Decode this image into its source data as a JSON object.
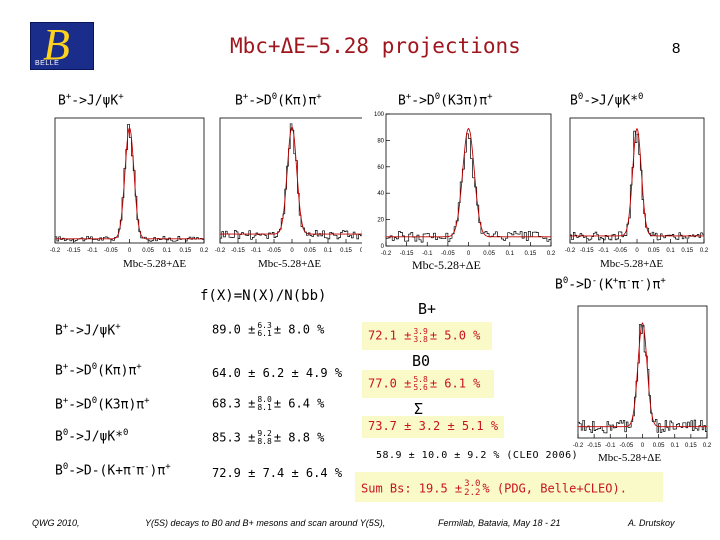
{
  "header": {
    "logo_text": "BELLE",
    "title": "Mbc+ΔE−5.28  projections",
    "page_number": "8"
  },
  "chart_data": [
    {
      "type": "histogram",
      "channel": "B+->J/ψK+",
      "xlabel": "Mbc-5.28+ΔE",
      "xlim": [
        -0.2,
        0.2
      ],
      "x_ticks": [
        -0.2,
        -0.15,
        -0.1,
        -0.05,
        0,
        0.05,
        0.1,
        0.15,
        0.2
      ],
      "ylim": [
        0,
        90
      ],
      "y_ticks": [],
      "peak_mean": 0.0,
      "peak_width": 0.012,
      "signal_height": 80,
      "background_level": 3
    },
    {
      "type": "histogram",
      "channel": "B+->D0(Kπ)π+",
      "xlabel": "Mbc-5.28+ΔE",
      "xlim": [
        -0.2,
        0.2
      ],
      "x_ticks": [
        -0.2,
        -0.15,
        -0.1,
        -0.05,
        0,
        0.05,
        0.1,
        0.15,
        0.2
      ],
      "ylim": [
        0,
        70
      ],
      "y_ticks": [],
      "peak_mean": 0.0,
      "peak_width": 0.013,
      "signal_height": 60,
      "background_level": 5
    },
    {
      "type": "histogram",
      "channel": "B+->D0(K3π)π+",
      "xlabel": "Mbc-5.28+ΔE",
      "xlim": [
        -0.2,
        0.2
      ],
      "x_ticks": [
        -0.2,
        -0.15,
        -0.1,
        -0.05,
        0,
        0.05,
        0.1,
        0.15,
        0.2
      ],
      "ylim": [
        0,
        100
      ],
      "y_ticks": [
        0,
        20,
        40,
        60,
        80,
        100
      ],
      "peak_mean": 0.0,
      "peak_width": 0.014,
      "signal_height": 82,
      "background_level": 7
    },
    {
      "type": "histogram",
      "channel": "B0->J/ψK*0",
      "xlabel": "Mbc-5.28+ΔE",
      "xlim": [
        -0.2,
        0.2
      ],
      "x_ticks": [
        -0.2,
        -0.15,
        -0.1,
        -0.05,
        0,
        0.05,
        0.1,
        0.15,
        0.2
      ],
      "ylim": [
        0,
        70
      ],
      "y_ticks": [],
      "peak_mean": 0.0,
      "peak_width": 0.013,
      "signal_height": 60,
      "background_level": 4
    },
    {
      "type": "histogram",
      "channel": "B0->D-(K+π−π−)π+",
      "xlabel": "Mbc-5.28+ΔE",
      "xlim": [
        -0.2,
        0.2
      ],
      "x_ticks": [
        -0.2,
        -0.15,
        -0.1,
        -0.05,
        0,
        0.05,
        0.1,
        0.15,
        0.2
      ],
      "ylim": [
        0,
        70
      ],
      "y_ticks": [],
      "peak_mean": 0.0,
      "peak_width": 0.014,
      "signal_height": 55,
      "background_level": 6
    }
  ],
  "channel_headers": {
    "h1": {
      "pre": "B",
      "sup1": "+",
      "mid": "->J/ψK",
      "sup2": "+"
    },
    "h2": {
      "pre": "B",
      "sup1": "+",
      "mid": "->D",
      "sup2": "0",
      "post": "(Kπ)π",
      "sup3": "+"
    },
    "h3": {
      "pre": "B",
      "sup1": "+",
      "mid": "->D",
      "sup2": "0",
      "post": "(K3π)π",
      "sup3": "+"
    },
    "h4": {
      "pre": "B",
      "sup1": "0",
      "mid": "->J/ψK*",
      "sup2": "0"
    },
    "h5": {
      "pre": "B",
      "sup1": "0",
      "mid": "->D",
      "sup2": "-",
      "post": "(K",
      "sup3": "+",
      "post2": "π",
      "sup4": "-",
      "post3": "π",
      "sup5": "-",
      "post4": ")π",
      "sup6": "+"
    }
  },
  "table": {
    "heading": "f(X)=N(X)/N(bb)",
    "rows": [
      {
        "label": {
          "pre": "B",
          "s1": "+",
          "mid": "->J/ψK",
          "s2": "+"
        },
        "value": "89.0 ±",
        "up": "6.3",
        "down": "6.1",
        "sys": "± 8.0 %"
      },
      {
        "label": {
          "pre": "B",
          "s1": "+",
          "mid": "->D",
          "s2": "0",
          "post": "(Kπ)π",
          "s3": "+"
        },
        "value": "64.0 ± 6.2 ± 4.9 %"
      },
      {
        "label": {
          "pre": "B",
          "s1": "+",
          "mid": "->D",
          "s2": "0",
          "post": "(K3π)π",
          "s3": "+"
        },
        "value": "68.3 ±",
        "up": "8.0",
        "down": "8.1",
        "sys": "± 6.4 %"
      },
      {
        "label": {
          "pre": "B",
          "s1": "0",
          "mid": "->J/ψK*",
          "s2": "0"
        },
        "value": "85.3 ±",
        "up": "9.2",
        "down": "8.8",
        "sys": "± 8.8 %"
      },
      {
        "label": {
          "pre": "B",
          "s1": "0",
          "mid": "->D-(K+π",
          "s2": "-",
          "post": "π",
          "s3": "-",
          "post2": ")π",
          "s4": "+"
        },
        "value": "72.9 ± 7.4 ± 6.4 %"
      }
    ]
  },
  "results": {
    "bplus_label": "B+",
    "bplus_value": "72.1 ±",
    "bplus_up": "3.9",
    "bplus_down": "3.8",
    "bplus_sys": "± 5.0 %",
    "b0_label": "B0",
    "b0_value": "77.0 ±",
    "b0_up": "5.8",
    "b0_down": "5.6",
    "b0_sys": "± 6.1 %",
    "sigma_label": "Σ",
    "sigma_value": "73.7 ±  3.2 ± 5.1 %",
    "cleo": "58.9 ± 10.0 ± 9.2 % (CLEO 2006)",
    "sum_pre": "Sum Bs: 19.5 ±",
    "sum_up": "3.0",
    "sum_down": "2.2",
    "sum_post": "% (PDG, Belle+CLEO)."
  },
  "footer": {
    "left": "QWG 2010,",
    "center": "Y(5S) decays to B0 and B+ mesons and scan around Y(5S),",
    "venue": "Fermilab, Batavia, May 18 - 21",
    "author": "A. Drutskoy"
  },
  "colors": {
    "title": "#a0161e",
    "highlight_box": "#fafac8",
    "result_red": "#c8141e",
    "logo_bg": "#1b2d8a",
    "logo_glyph": "#ffd21e"
  }
}
